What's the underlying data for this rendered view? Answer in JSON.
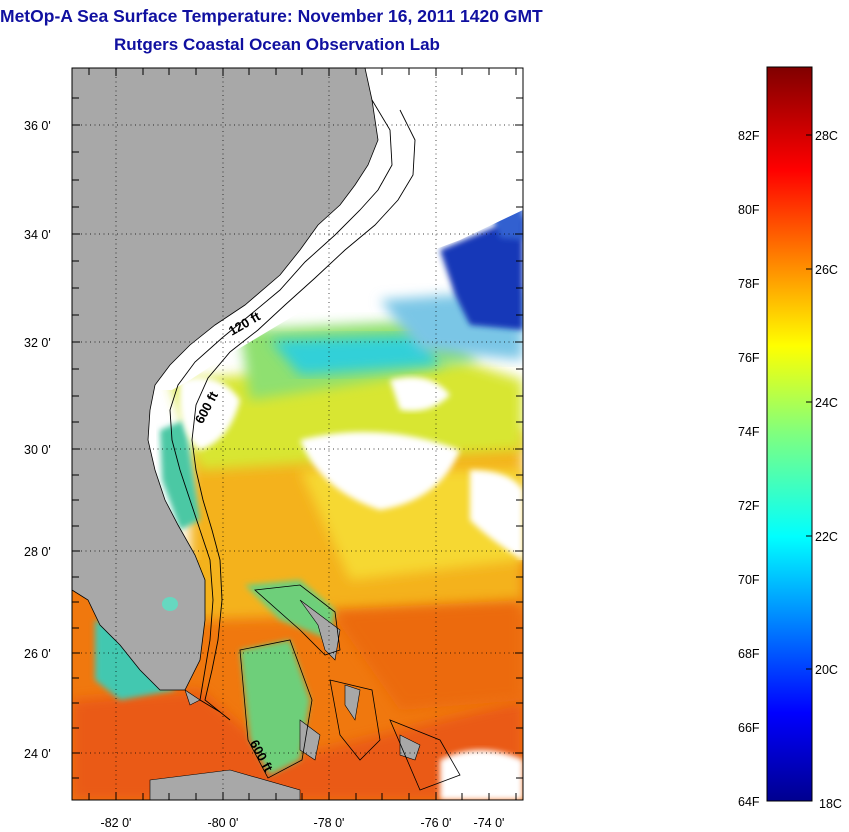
{
  "title": "MetOp-A Sea Surface Temperature:  November 16, 2011 1420 GMT",
  "subtitle": "Rutgers Coastal Ocean Observation Lab",
  "map": {
    "lat_labels": [
      "36 0'",
      "34 0'",
      "32 0'",
      "30 0'",
      "28 0'",
      "26 0'",
      "24 0'"
    ],
    "lon_labels": [
      "-82 0'",
      "-80 0'",
      "-78 0'",
      "-76 0'",
      "-74 0'"
    ],
    "contour_labels": [
      "120 ft",
      "600 ft",
      "600 ft"
    ],
    "colors": {
      "land": "#a8a8a8",
      "cloud": "#ffffff"
    }
  },
  "colorbar": {
    "f_labels": [
      "82F",
      "80F",
      "78F",
      "76F",
      "74F",
      "72F",
      "70F",
      "68F",
      "66F",
      "64F"
    ],
    "c_labels": [
      "28C",
      "26C",
      "24C",
      "22C",
      "20C",
      "18C"
    ]
  }
}
